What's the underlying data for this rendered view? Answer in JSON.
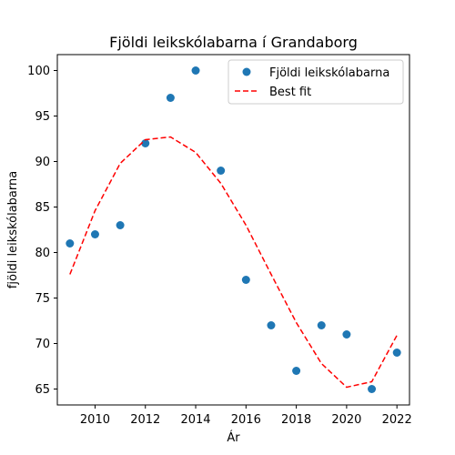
{
  "chart_data": {
    "type": "scatter",
    "title": "Fjöldi leikskólabarna í Grandaborg",
    "xlabel": "Ár",
    "ylabel": "fjöldi leikskólabarna",
    "xlim": [
      2008.5,
      2022.5
    ],
    "ylim": [
      63.25,
      101.75
    ],
    "x_ticks": [
      2010,
      2012,
      2014,
      2016,
      2018,
      2020,
      2022
    ],
    "y_ticks": [
      65,
      70,
      75,
      80,
      85,
      90,
      95,
      100
    ],
    "grid": false,
    "legend_position": "top-right",
    "series": [
      {
        "name": "Fjöldi leikskólabarna",
        "kind": "scatter",
        "color": "#1f77b4",
        "x": [
          2009,
          2010,
          2011,
          2012,
          2013,
          2014,
          2015,
          2016,
          2017,
          2018,
          2019,
          2020,
          2021,
          2022
        ],
        "y": [
          81,
          82,
          83,
          92,
          97,
          100,
          89,
          77,
          72,
          67,
          72,
          71,
          65,
          69
        ]
      },
      {
        "name": "Best fit",
        "kind": "line",
        "style": "dashed",
        "color": "#ff0000",
        "x": [
          2009,
          2010,
          2011,
          2012,
          2013,
          2014,
          2015,
          2016,
          2017,
          2018,
          2019,
          2020,
          2021,
          2022
        ],
        "y": [
          77.6,
          84.6,
          89.8,
          92.4,
          92.7,
          91.0,
          87.6,
          83.0,
          77.6,
          72.3,
          67.8,
          65.2,
          65.8,
          70.9
        ]
      }
    ]
  }
}
